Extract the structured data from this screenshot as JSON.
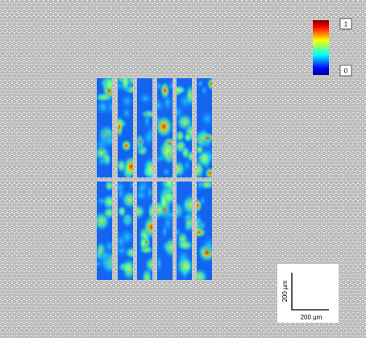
{
  "colorbar": {
    "max": 1,
    "min": 0
  },
  "scale_bar": {
    "x_label": "200 µm",
    "y_label": "200 µm"
  }
}
